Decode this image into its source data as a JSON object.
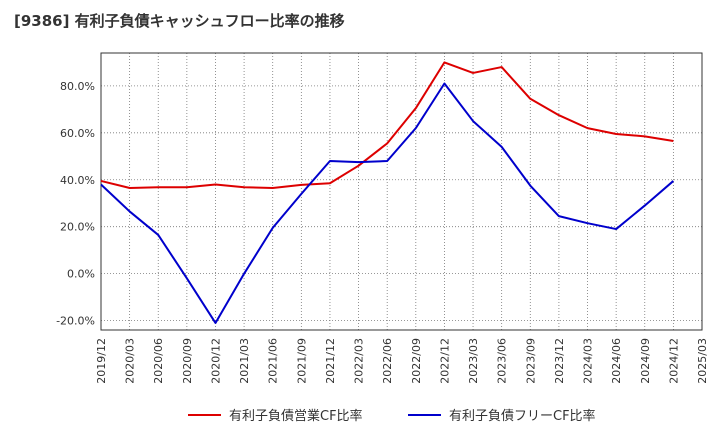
{
  "chart_data": {
    "type": "line",
    "title": "[9386]  有利子負債キャッシュフロー比率の推移",
    "x": [
      "2019/12",
      "2020/03",
      "2020/06",
      "2020/09",
      "2020/12",
      "2021/03",
      "2021/06",
      "2021/09",
      "2021/12",
      "2022/03",
      "2022/06",
      "2022/09",
      "2022/12",
      "2023/03",
      "2023/06",
      "2023/09",
      "2023/12",
      "2024/03",
      "2024/06",
      "2024/09",
      "2024/12",
      "2025/03"
    ],
    "ylim": [
      -24,
      94
    ],
    "yticks": [
      -20,
      0,
      20,
      40,
      60,
      80
    ],
    "ytick_labels": [
      "-20.0%",
      "0.0%",
      "20.0%",
      "40.0%",
      "60.0%",
      "80.0%"
    ],
    "grid": true,
    "legend_position": "bottom",
    "series": [
      {
        "name": "有利子負債営業CF比率",
        "color": "#dd0000",
        "values": [
          39.5,
          36.5,
          36.8,
          36.8,
          38.0,
          36.8,
          36.5,
          37.8,
          38.5,
          46.0,
          55.5,
          70.5,
          90.0,
          85.5,
          88.0,
          74.5,
          67.5,
          62.0,
          59.5,
          58.5,
          56.5,
          null
        ]
      },
      {
        "name": "有利子負債フリーCF比率",
        "color": "#0000cc",
        "values": [
          38.0,
          26.5,
          16.5,
          -2.0,
          -21.0,
          0.0,
          19.5,
          34.0,
          48.0,
          47.5,
          48.0,
          62.0,
          81.0,
          65.0,
          54.0,
          37.5,
          24.5,
          21.5,
          19.0,
          29.0,
          39.5,
          null
        ]
      }
    ]
  }
}
